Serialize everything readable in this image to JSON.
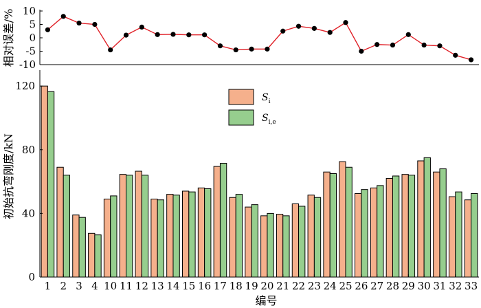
{
  "chart_data": [
    {
      "type": "line",
      "ylabel": "相对误差/%",
      "ylim": [
        -10,
        10
      ],
      "yticks": [
        -10,
        -5,
        0,
        5,
        10
      ],
      "categories": [
        "1",
        "2",
        "3",
        "4",
        "10",
        "11",
        "12",
        "13",
        "14",
        "15",
        "16",
        "17",
        "18",
        "19",
        "20",
        "21",
        "22",
        "23",
        "24",
        "25",
        "26",
        "27",
        "28",
        "29",
        "30",
        "31",
        "32",
        "33"
      ],
      "values": [
        3,
        8,
        5.5,
        5,
        -4.5,
        1,
        4,
        1.2,
        1.3,
        1.1,
        1.1,
        -3,
        -4.5,
        -4.2,
        -4.2,
        2.5,
        4.3,
        3.5,
        2,
        5.7,
        -5,
        -2.5,
        -2.7,
        1.2,
        -2.7,
        -3,
        -6.5,
        -8.2
      ],
      "colors": {
        "line": "#e0232a",
        "marker": "#000000"
      }
    },
    {
      "type": "bar",
      "xlabel": "编号",
      "ylabel": "初始抗弯刚度/kN",
      "ylim": [
        0,
        130
      ],
      "yticks": [
        0,
        40,
        80,
        120
      ],
      "categories": [
        "1",
        "2",
        "3",
        "4",
        "10",
        "11",
        "12",
        "13",
        "14",
        "15",
        "16",
        "17",
        "18",
        "19",
        "20",
        "21",
        "22",
        "23",
        "24",
        "25",
        "26",
        "27",
        "28",
        "29",
        "30",
        "31",
        "32",
        "33"
      ],
      "series": [
        {
          "name": "S",
          "subscript": "i",
          "color": "#f5b08c",
          "values": [
            120,
            69,
            39,
            27.5,
            49,
            64.5,
            66.5,
            49,
            52,
            54,
            56,
            69.5,
            50,
            44,
            38.5,
            39.5,
            46,
            51.5,
            66,
            72.5,
            52.5,
            56,
            62,
            64.5,
            73,
            66,
            50.5,
            48.5
          ]
        },
        {
          "name": "S",
          "subscript": "i,e",
          "color": "#96ce8e",
          "values": [
            116.5,
            64,
            37.5,
            26.5,
            51,
            64,
            64,
            48.5,
            51.5,
            53.5,
            55.5,
            71.5,
            52,
            45.5,
            40,
            38.5,
            44.5,
            50,
            65,
            69,
            55,
            57.5,
            63.5,
            64,
            75,
            68,
            53.5,
            52.5
          ]
        }
      ],
      "legend_position": "top-center"
    }
  ]
}
